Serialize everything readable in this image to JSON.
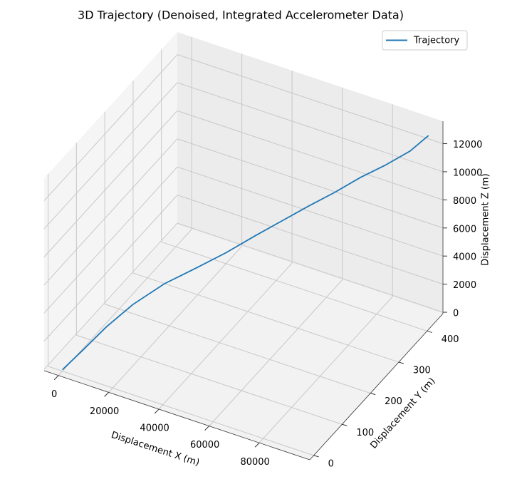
{
  "chart_data": {
    "type": "line3d",
    "title": "3D Trajectory (Denoised, Integrated Accelerometer Data)",
    "xlabel": "Displacement X (m)",
    "ylabel": "Displacement Y (m)",
    "zlabel": "Displacement Z (m)",
    "series": [
      {
        "name": "Trajectory",
        "color": "#1f77b4",
        "x": [
          0,
          2000,
          5000,
          10000,
          17000,
          25000,
          33000,
          41000,
          49000,
          57000,
          65000,
          73000,
          81000,
          89000,
          95000
        ],
        "y": [
          0,
          60,
          110,
          160,
          210,
          250,
          285,
          315,
          340,
          365,
          385,
          405,
          420,
          438,
          450
        ],
        "z": [
          0,
          300,
          900,
          1700,
          2500,
          3200,
          4000,
          5000,
          6000,
          7000,
          8000,
          9100,
          10100,
          11200,
          12400
        ]
      }
    ],
    "xlim": [
      -5700,
      100100
    ],
    "ylim": [
      -14,
      456
    ],
    "zlim": [
      -100,
      13600
    ],
    "xticks": [
      0,
      20000,
      40000,
      60000,
      80000
    ],
    "yticks": [
      0,
      100,
      200,
      300,
      400
    ],
    "zticks": [
      0,
      2000,
      4000,
      6000,
      8000,
      10000,
      12000
    ],
    "grid": true,
    "legend": "upper right"
  }
}
